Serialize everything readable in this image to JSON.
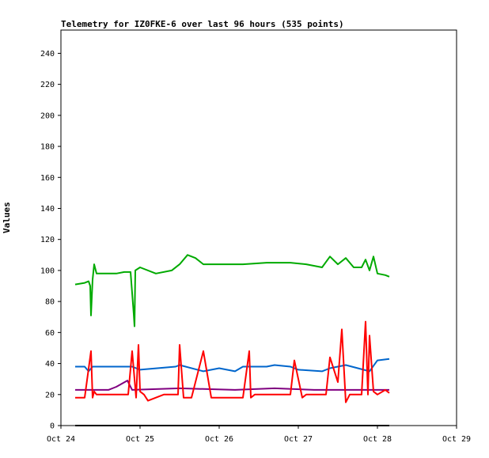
{
  "chart_data": {
    "type": "line",
    "title": "Telemetry for IZ0FKE-6 over last 96 hours (535 points)",
    "xlabel": "",
    "ylabel": "Values",
    "ylim": [
      0,
      255
    ],
    "yticks": [
      0,
      20,
      40,
      60,
      80,
      100,
      120,
      140,
      160,
      180,
      200,
      220,
      240
    ],
    "xlim": [
      "Oct 24",
      "Oct 29"
    ],
    "xticks": [
      "Oct 24",
      "Oct 25",
      "Oct 26",
      "Oct 27",
      "Oct 28",
      "Oct 29"
    ],
    "grid": false,
    "series": [
      {
        "color": "#00aa00",
        "x": [
          0.18,
          0.3,
          0.35,
          0.37,
          0.38,
          0.4,
          0.42,
          0.45,
          0.5,
          0.7,
          0.8,
          0.88,
          0.92,
          0.93,
          0.94,
          1.0,
          1.2,
          1.4,
          1.5,
          1.6,
          1.7,
          1.8,
          2.0,
          2.3,
          2.6,
          2.9,
          3.1,
          3.3,
          3.4,
          3.5,
          3.6,
          3.7,
          3.8,
          3.85,
          3.9,
          3.95,
          4.0,
          4.1,
          4.15
        ],
        "y": [
          91,
          92,
          93,
          90,
          71,
          94,
          104,
          98,
          98,
          98,
          99,
          99,
          72,
          64,
          100,
          102,
          98,
          100,
          104,
          110,
          108,
          104,
          104,
          104,
          105,
          105,
          104,
          102,
          109,
          104,
          108,
          102,
          102,
          107,
          100,
          109,
          98,
          97,
          96
        ]
      },
      {
        "color": "#0066cc",
        "x": [
          0.18,
          0.3,
          0.35,
          0.4,
          0.45,
          0.9,
          1.0,
          1.45,
          1.5,
          1.8,
          2.0,
          2.2,
          2.3,
          2.6,
          2.7,
          2.9,
          3.0,
          3.3,
          3.4,
          3.5,
          3.6,
          3.9,
          4.0,
          4.15
        ],
        "y": [
          38,
          38,
          35,
          38,
          38,
          38,
          36,
          38,
          39,
          35,
          37,
          35,
          38,
          38,
          39,
          38,
          36,
          35,
          37,
          38,
          39,
          35,
          42,
          43
        ]
      },
      {
        "color": "#800080",
        "x": [
          0.18,
          0.5,
          0.6,
          0.7,
          0.84,
          0.9,
          1.5,
          2.2,
          2.7,
          3.2,
          3.6,
          4.15
        ],
        "y": [
          23,
          23,
          23,
          25,
          29,
          23,
          24,
          23,
          24,
          23,
          23,
          23
        ]
      },
      {
        "color": "#ff0000",
        "x": [
          0.18,
          0.3,
          0.38,
          0.4,
          0.42,
          0.45,
          0.5,
          0.85,
          0.9,
          0.95,
          0.98,
          1.0,
          1.05,
          1.1,
          1.3,
          1.48,
          1.5,
          1.55,
          1.65,
          1.8,
          1.9,
          2.3,
          2.38,
          2.4,
          2.45,
          2.9,
          2.95,
          3.05,
          3.1,
          3.35,
          3.4,
          3.5,
          3.55,
          3.6,
          3.65,
          3.8,
          3.85,
          3.88,
          3.9,
          3.95,
          4.0,
          4.1,
          4.15
        ],
        "y": [
          18,
          18,
          48,
          18,
          22,
          20,
          20,
          20,
          48,
          18,
          52,
          22,
          20,
          16,
          20,
          20,
          52,
          18,
          18,
          48,
          18,
          18,
          48,
          18,
          20,
          20,
          42,
          18,
          20,
          20,
          44,
          28,
          62,
          15,
          20,
          20,
          67,
          20,
          58,
          22,
          20,
          23,
          21
        ]
      },
      {
        "color": "#000000",
        "x": [
          0.18,
          4.15
        ],
        "y": [
          0,
          0
        ]
      }
    ]
  }
}
